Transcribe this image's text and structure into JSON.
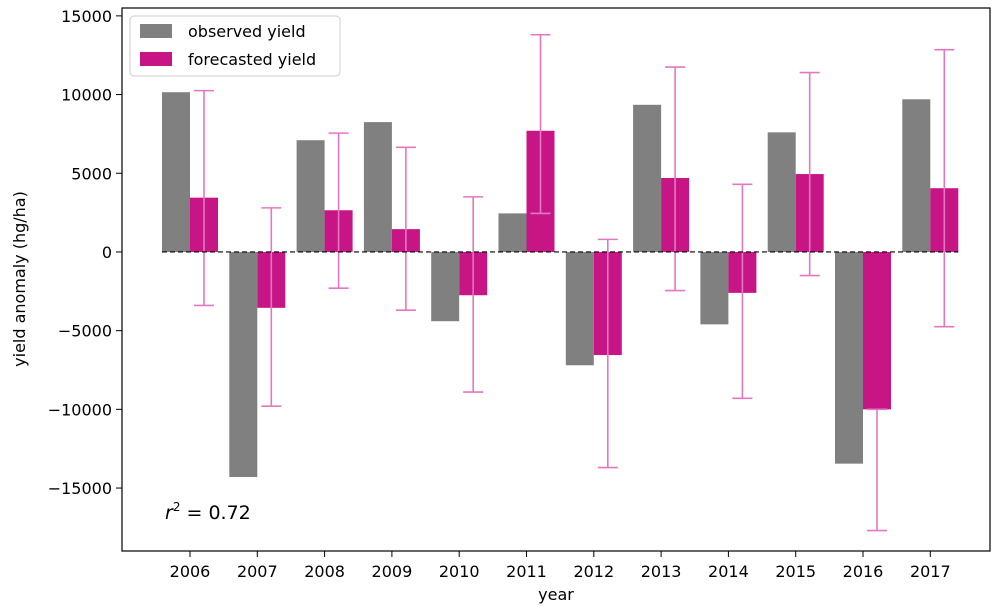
{
  "chart_data": {
    "type": "bar",
    "xlabel": "year",
    "ylabel": "yield anomaly (hg/ha)",
    "ylim": [
      -19000,
      15500
    ],
    "yticks": [
      15000,
      10000,
      5000,
      0,
      -5000,
      -10000,
      -15000
    ],
    "ytick_labels": [
      "15000",
      "10000",
      "5000",
      "0",
      "−5000",
      "−10000",
      "−15000"
    ],
    "categories": [
      "2006",
      "2007",
      "2008",
      "2009",
      "2010",
      "2011",
      "2012",
      "2013",
      "2014",
      "2015",
      "2016",
      "2017"
    ],
    "series": [
      {
        "name": "observed yield",
        "color": "#808080",
        "values": [
          10150,
          -14300,
          7100,
          8250,
          -4400,
          2450,
          -7200,
          9350,
          -4600,
          7600,
          -13450,
          9700
        ]
      },
      {
        "name": "forecasted yield",
        "color": "#c71585",
        "values": [
          3450,
          -3550,
          2650,
          1450,
          -2750,
          7700,
          -6550,
          4700,
          -2600,
          4950,
          -10000,
          4050
        ],
        "error_low": [
          -3400,
          -9800,
          -2300,
          -3700,
          -8900,
          2450,
          -13700,
          -2450,
          -9300,
          -1500,
          -17700,
          -4750
        ],
        "error_high": [
          10250,
          2800,
          7550,
          6650,
          3500,
          13800,
          800,
          11750,
          4300,
          11400,
          -10000,
          12850
        ],
        "error_color": "#e377c2"
      }
    ],
    "baseline": 0,
    "legend_position": "top-left",
    "annotation": {
      "symbol": "r",
      "exponent": "2",
      "rest": " = 0.72"
    }
  }
}
